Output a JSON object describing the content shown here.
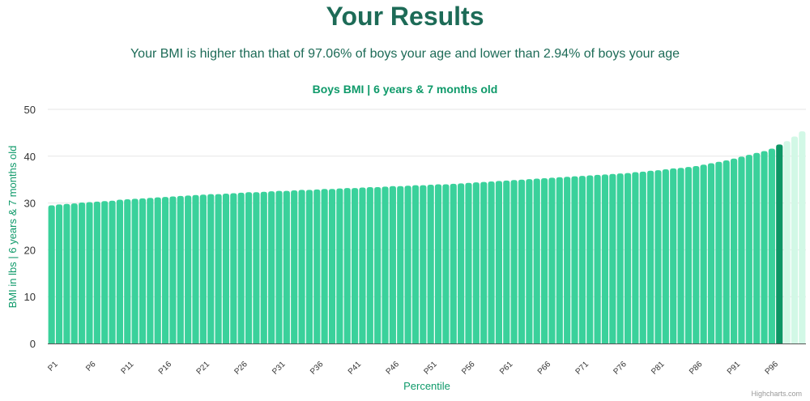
{
  "header": {
    "title": "Your Results",
    "subtitle": "Your BMI is higher than that of 97.06% of boys your age and lower than 2.94% of boys your age"
  },
  "chart_data": {
    "type": "bar",
    "title": "Boys BMI | 6 years & 7 months old",
    "xlabel": "Percentile",
    "ylabel": "BMI in lbs | 6 years & 7 months old",
    "ylim": [
      0,
      50
    ],
    "yticks": [
      0,
      10,
      20,
      30,
      40,
      50
    ],
    "grid": true,
    "legend": "none",
    "xtick_labels": [
      "P1",
      "P6",
      "P11",
      "P16",
      "P21",
      "P26",
      "P31",
      "P36",
      "P41",
      "P46",
      "P51",
      "P56",
      "P61",
      "P66",
      "P71",
      "P76",
      "P81",
      "P86",
      "P91",
      "P96"
    ],
    "categories": [
      "P1",
      "P2",
      "P3",
      "P4",
      "P5",
      "P6",
      "P7",
      "P8",
      "P9",
      "P10",
      "P11",
      "P12",
      "P13",
      "P14",
      "P15",
      "P16",
      "P17",
      "P18",
      "P19",
      "P20",
      "P21",
      "P22",
      "P23",
      "P24",
      "P25",
      "P26",
      "P27",
      "P28",
      "P29",
      "P30",
      "P31",
      "P32",
      "P33",
      "P34",
      "P35",
      "P36",
      "P37",
      "P38",
      "P39",
      "P40",
      "P41",
      "P42",
      "P43",
      "P44",
      "P45",
      "P46",
      "P47",
      "P48",
      "P49",
      "P50",
      "P51",
      "P52",
      "P53",
      "P54",
      "P55",
      "P56",
      "P57",
      "P58",
      "P59",
      "P60",
      "P61",
      "P62",
      "P63",
      "P64",
      "P65",
      "P66",
      "P67",
      "P68",
      "P69",
      "P70",
      "P71",
      "P72",
      "P73",
      "P74",
      "P75",
      "P76",
      "P77",
      "P78",
      "P79",
      "P80",
      "P81",
      "P82",
      "P83",
      "P84",
      "P85",
      "P86",
      "P87",
      "P88",
      "P89",
      "P90",
      "P91",
      "P92",
      "P93",
      "P94",
      "P95",
      "P96",
      "P97",
      "P98",
      "P99",
      "P100"
    ],
    "values": [
      29.5,
      29.7,
      29.8,
      29.9,
      30.1,
      30.2,
      30.3,
      30.4,
      30.5,
      30.7,
      30.8,
      30.9,
      31.0,
      31.1,
      31.2,
      31.3,
      31.4,
      31.5,
      31.6,
      31.7,
      31.8,
      31.9,
      31.9,
      32.0,
      32.1,
      32.2,
      32.3,
      32.3,
      32.4,
      32.5,
      32.6,
      32.6,
      32.7,
      32.8,
      32.8,
      32.9,
      33.0,
      33.0,
      33.1,
      33.2,
      33.2,
      33.3,
      33.4,
      33.4,
      33.5,
      33.6,
      33.6,
      33.7,
      33.8,
      33.8,
      33.9,
      34.0,
      34.0,
      34.1,
      34.2,
      34.3,
      34.4,
      34.5,
      34.6,
      34.7,
      34.8,
      34.9,
      35.0,
      35.1,
      35.2,
      35.3,
      35.4,
      35.5,
      35.6,
      35.7,
      35.8,
      35.9,
      36.0,
      36.1,
      36.2,
      36.3,
      36.4,
      36.6,
      36.7,
      36.9,
      37.0,
      37.2,
      37.4,
      37.5,
      37.7,
      37.9,
      38.2,
      38.5,
      38.8,
      39.1,
      39.5,
      39.9,
      40.3,
      40.7,
      41.1,
      41.6,
      42.5,
      43.2,
      44.2,
      45.3
    ],
    "highlight_index": 96,
    "colors": {
      "bar": "#3ad19b",
      "highlight": "#0d9665",
      "above": "#d2f8e6",
      "grid": "#e6e6e6",
      "axis": "#555555"
    },
    "credits": "Highcharts.com"
  }
}
